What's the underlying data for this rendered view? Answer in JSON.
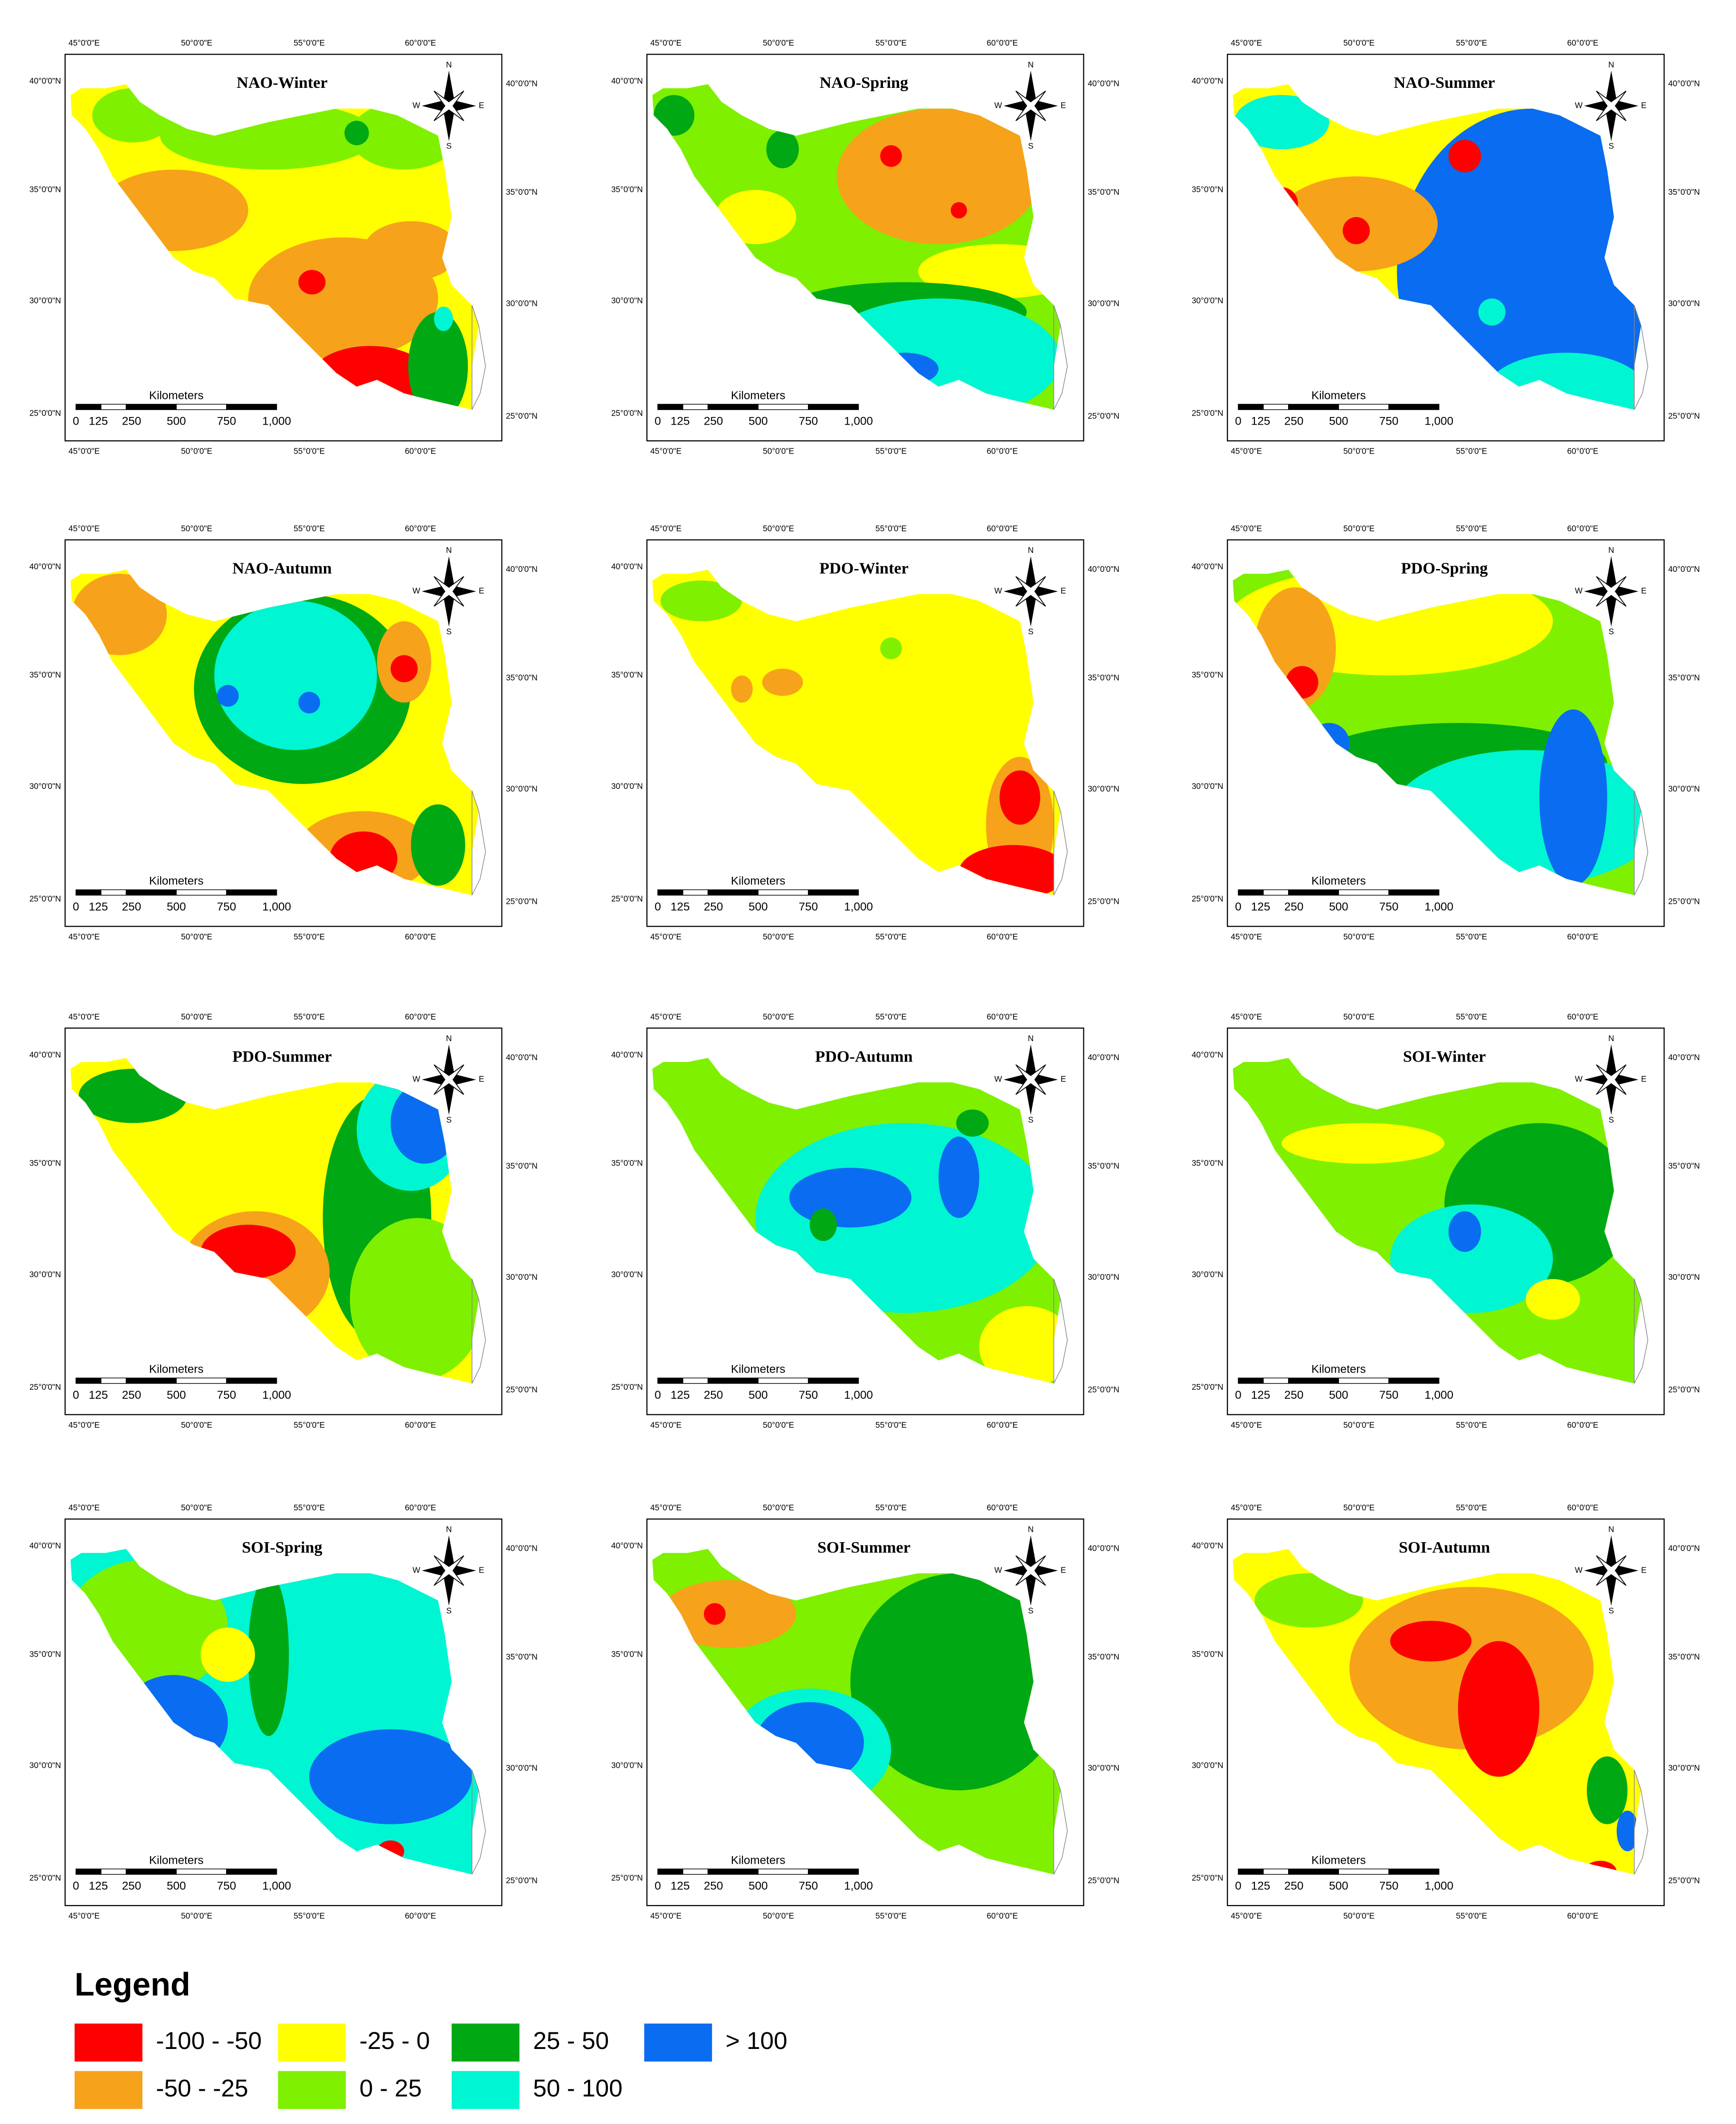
{
  "panels": [
    {
      "title": "NAO-Winter"
    },
    {
      "title": "NAO-Spring"
    },
    {
      "title": "NAO-Summer"
    },
    {
      "title": "NAO-Autumn"
    },
    {
      "title": "PDO-Winter"
    },
    {
      "title": "PDO-Spring"
    },
    {
      "title": "PDO-Summer"
    },
    {
      "title": "PDO-Autumn"
    },
    {
      "title": "SOI-Winter"
    },
    {
      "title": "SOI-Spring"
    },
    {
      "title": "SOI-Summer"
    },
    {
      "title": "SOI-Autumn"
    }
  ],
  "x_labels": [
    "45°0'0\"E",
    "50°0'0\"E",
    "55°0'0\"E",
    "60°0'0\"E"
  ],
  "y_labels": [
    "40°0'0\"N",
    "35°0'0\"N",
    "30°0'0\"N",
    "25°0'0\"N"
  ],
  "compass": {
    "n": "N",
    "w": "W",
    "e": "E",
    "s": "S"
  },
  "scale_bar": {
    "title": "Kilometers",
    "labels": [
      "0",
      "125",
      "250",
      "500",
      "750",
      "1,000"
    ]
  },
  "legend": {
    "title": "Legend",
    "items": [
      {
        "label": "-100 - -50",
        "color": "#ff0000"
      },
      {
        "label": "-50 - -25",
        "color": "#f7a21b"
      },
      {
        "label": "-25 - 0",
        "color": "#ffff00"
      },
      {
        "label": "0 - 25",
        "color": "#7ff000"
      },
      {
        "label": "25 - 50",
        "color": "#00a814"
      },
      {
        "label": "50 - 100",
        "color": "#00f5d2"
      },
      {
        "label": "> 100",
        "color": "#0a6cf0"
      }
    ]
  }
}
